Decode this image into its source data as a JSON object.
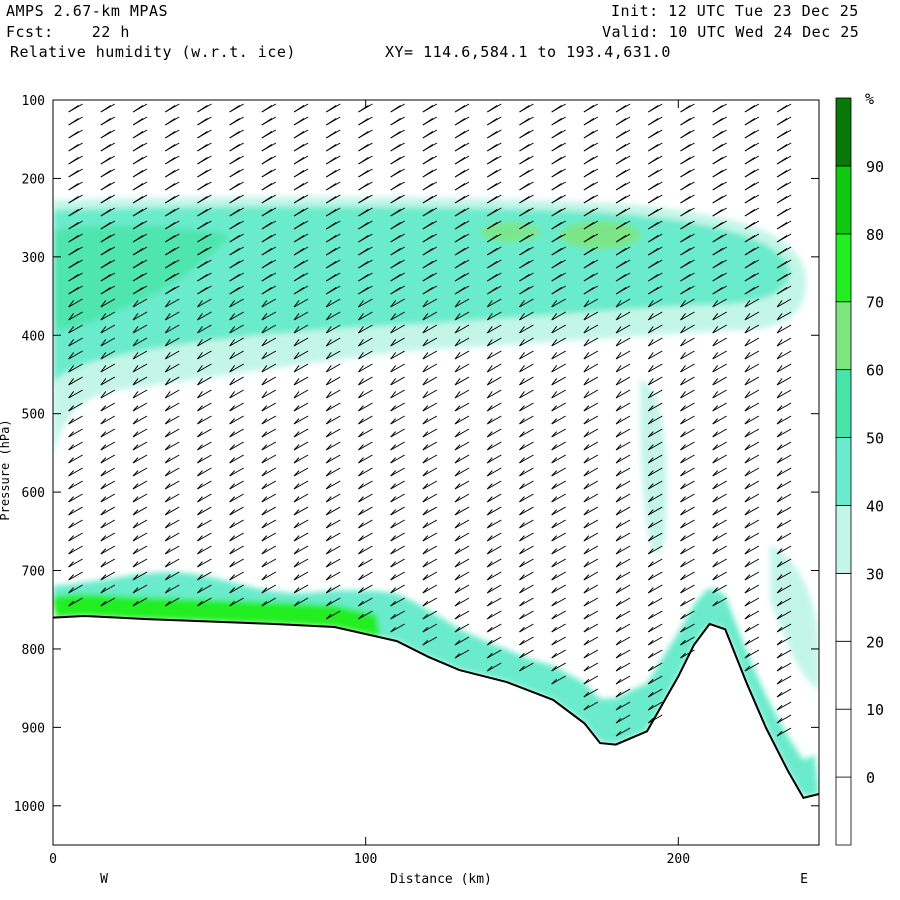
{
  "header": {
    "model": "AMPS 2.67-km MPAS",
    "init": "Init: 12 UTC Tue 23 Dec 25",
    "fcst": "Fcst:    22 h",
    "valid": "Valid: 10 UTC Wed 24 Dec 25",
    "field": "Relative humidity (w.r.t. ice)",
    "xy": "XY= 114.6,584.1 to 193.4,631.0"
  },
  "chart_data": {
    "type": "heatmap",
    "xlabel": "Distance (km)",
    "ylabel": "Pressure (hPa)",
    "xlim": [
      0,
      245
    ],
    "ylim": [
      1050,
      100
    ],
    "xticks": [
      0,
      100,
      200
    ],
    "yticks": [
      100,
      200,
      300,
      400,
      500,
      600,
      700,
      800,
      900,
      1000
    ],
    "west_label": "W",
    "east_label": "E",
    "terrain_surface_hPa": {
      "x": [
        0,
        10,
        30,
        50,
        70,
        90,
        110,
        120,
        130,
        145,
        160,
        170,
        175,
        180,
        190,
        200,
        205,
        210,
        215,
        222,
        228,
        235,
        240,
        245
      ],
      "p": [
        760,
        758,
        762,
        765,
        768,
        772,
        790,
        810,
        827,
        842,
        865,
        895,
        920,
        922,
        905,
        835,
        795,
        768,
        775,
        845,
        900,
        955,
        990,
        985
      ]
    },
    "colorbar": {
      "unit": "%",
      "levels": [
        0,
        10,
        20,
        30,
        40,
        50,
        60,
        70,
        80,
        90
      ],
      "colors": [
        "#ffffff",
        "#ffffff",
        "#ffffff",
        "#ffffff",
        "#c4f6e8",
        "#6aebcc",
        "#48e4a8",
        "#7ee67e",
        "#22ee22",
        "#10c810",
        "#087808"
      ]
    },
    "wind_barbs": "many wind barbs along vertical columns spaced ~10 km apart"
  }
}
